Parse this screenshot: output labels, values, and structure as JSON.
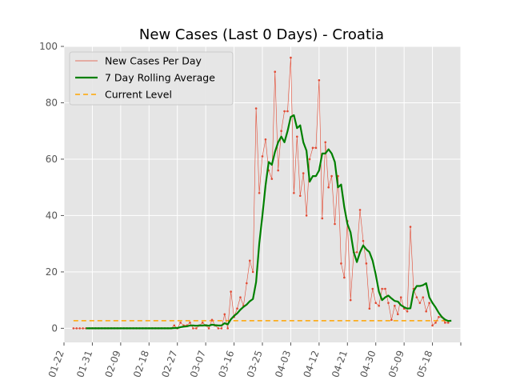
{
  "chart_data": {
    "type": "line",
    "title": "New Cases (Last 0 Days) - Croatia",
    "xlabel": "",
    "ylabel": "",
    "x_range": [
      "2020-01-22",
      "2020-05-27"
    ],
    "ylim": [
      -5,
      100
    ],
    "grid": true,
    "legend_position": "top-left",
    "x_tick_labels": [
      "01-22",
      "01-31",
      "02-09",
      "02-18",
      "02-27",
      "03-07",
      "03-16",
      "03-25",
      "04-03",
      "04-12",
      "04-21",
      "04-30",
      "05-09",
      "05-18"
    ],
    "y_tick_values": [
      0,
      20,
      40,
      60,
      80,
      100
    ],
    "start_date": "2020-01-25",
    "series": [
      {
        "name": "New Cases Per Day",
        "color": "#e24a33",
        "style": "thin-line-with-points",
        "values": [
          0,
          0,
          0,
          0,
          0,
          0,
          0,
          0,
          0,
          0,
          0,
          0,
          0,
          0,
          0,
          0,
          0,
          0,
          0,
          0,
          0,
          0,
          0,
          0,
          0,
          0,
          0,
          0,
          0,
          0,
          0,
          0,
          1,
          0,
          2,
          1,
          1,
          2,
          0,
          0,
          1,
          2,
          1,
          0,
          3,
          1,
          0,
          0,
          5,
          0,
          13,
          4,
          7,
          11,
          8,
          16,
          24,
          20,
          78,
          48,
          61,
          67,
          56,
          53,
          91,
          56,
          70,
          77,
          77,
          96,
          48,
          68,
          47,
          55,
          40,
          60,
          64,
          64,
          88,
          39,
          66,
          50,
          54,
          37,
          54,
          23,
          18,
          38,
          10,
          27,
          27,
          42,
          31,
          23,
          7,
          14,
          9,
          8,
          14,
          14,
          9,
          3,
          8,
          5,
          11,
          7,
          6,
          36,
          14,
          11,
          9,
          11,
          6,
          9,
          1,
          2,
          4,
          4,
          2,
          2
        ],
        "values_note": ""
      },
      {
        "name": "7 Day Rolling Average",
        "color": "#008000",
        "style": "thick-line",
        "values": [
          0,
          0,
          0,
          0,
          0,
          0,
          0,
          0,
          0,
          0,
          0,
          0,
          0,
          0,
          0,
          0,
          0,
          0,
          0,
          0,
          0,
          0,
          0,
          0,
          0,
          0,
          0,
          0,
          0,
          0,
          0,
          0,
          0.1,
          0.1,
          0.4,
          0.6,
          0.7,
          1.0,
          1.0,
          0.9,
          1.0,
          1.0,
          1.1,
          0.9,
          1.3,
          1.1,
          1.0,
          1.0,
          1.8,
          1.4,
          3.2,
          4.4,
          5.3,
          6.6,
          7.6,
          8.4,
          9.6,
          10.4,
          16.4,
          30.0,
          40.0,
          50.7,
          59.0,
          58.0,
          62.6,
          66.0,
          68.0,
          66.0,
          70.0,
          75.0,
          75.6,
          71.0,
          72.0,
          66.0,
          63.0,
          52.0,
          54.0,
          54.0,
          56.0,
          62.0,
          62.0,
          63.5,
          62.0,
          59.0,
          50.0,
          51.0,
          43.0,
          37.0,
          34.0,
          27.0,
          23.5,
          27.0,
          29.4,
          28.0,
          27.0,
          24.0,
          19.0,
          13.0,
          10.0,
          11.0,
          11.6,
          10.6,
          9.7,
          9.5,
          8.2,
          7.5,
          7.0,
          7.1,
          13.2,
          15.0,
          15.0,
          15.3,
          16.0,
          11.0,
          9.0,
          7.4,
          5.5,
          4.0,
          3.1,
          2.6,
          2.7
        ]
      },
      {
        "name": "Current Level",
        "color": "#ffa500",
        "style": "dashed",
        "value": 2.7
      }
    ]
  }
}
